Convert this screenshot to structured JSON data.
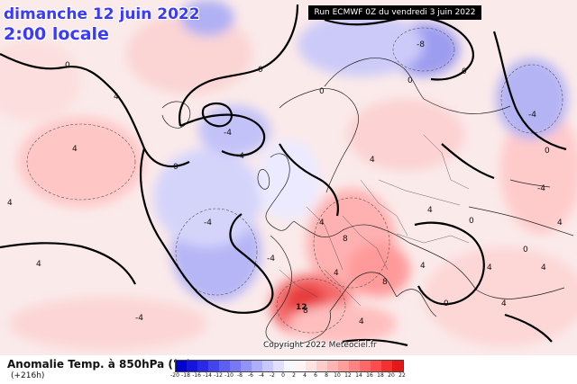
{
  "header": {
    "date_line": "dimanche 12 juin 2022",
    "time_line": "2:00 locale",
    "run_label": "Run ECMWF 0Z du vendredi 3 juin 2022"
  },
  "footer": {
    "title": "Anomalie Temp. à 850hPa (°C)",
    "subtitle": "(+216h)",
    "copyright": "Copyright 2022 Meteociel.fr"
  },
  "scale": {
    "ticks": [
      "-20",
      "-18",
      "-16",
      "-14",
      "-12",
      "-10",
      "-8",
      "-6",
      "-4",
      "-2",
      "0",
      "2",
      "4",
      "6",
      "8",
      "10",
      "12",
      "14",
      "16",
      "18",
      "20",
      "22"
    ],
    "colors": [
      "#0000cc",
      "#1515dd",
      "#2a2ae6",
      "#4444ee",
      "#5e5ef2",
      "#7878f5",
      "#9292f7",
      "#aeaefa",
      "#c8c8fc",
      "#e0e0fe",
      "#f7f7ff",
      "#fff4f4",
      "#ffe2e2",
      "#ffcccc",
      "#ffb4b4",
      "#ff9c9c",
      "#ff8282",
      "#ff6868",
      "#ff4c4c",
      "#f43030",
      "#e41818"
    ]
  },
  "contour_labels": [
    "0",
    "0",
    "0",
    "0",
    "0",
    "-4",
    "-4",
    "-8",
    "-4",
    "-4",
    "-4",
    "-4",
    "-4",
    "0",
    "4",
    "4",
    "4",
    "8",
    "8",
    "4",
    "12",
    "8",
    "4",
    "0",
    "0",
    "4",
    "0",
    "4",
    "4",
    "4",
    "4",
    "4",
    "0",
    "4",
    "4",
    "4"
  ]
}
